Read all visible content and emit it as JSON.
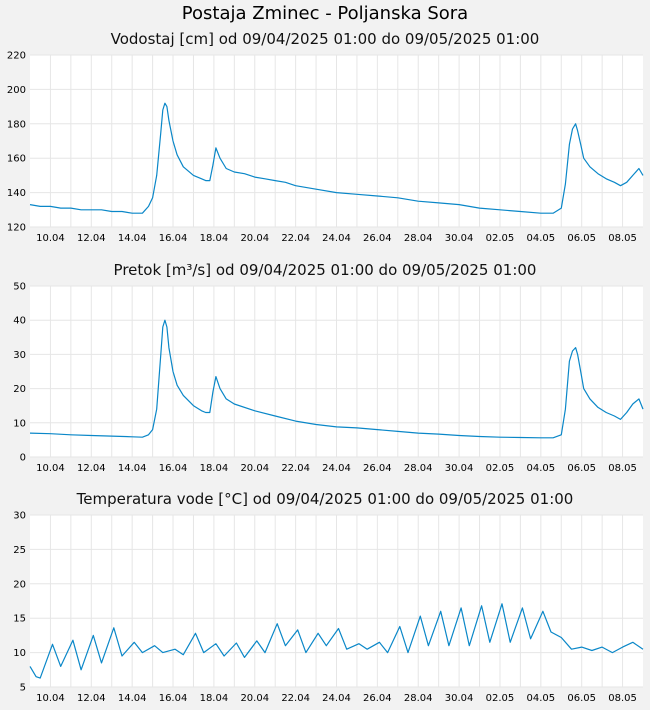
{
  "page": {
    "title": "Postaja Zminec - Poljanska Sora"
  },
  "colors": {
    "series": "#0a87c8",
    "background": "#f2f2f2",
    "plot_background": "#ffffff",
    "grid": "#e6e6e6"
  },
  "chart_data": [
    {
      "type": "line",
      "title": "Vodostaj [cm] od 09/04/2025 01:00 do 09/05/2025 01:00",
      "ylim": [
        120,
        220
      ],
      "yticks": [
        120,
        140,
        160,
        180,
        200,
        220
      ],
      "xlim": [
        0.0,
        30.0
      ],
      "xticks": [
        {
          "label": "10.04",
          "x": 1.0
        },
        {
          "label": "12.04",
          "x": 3.0
        },
        {
          "label": "14.04",
          "x": 5.0
        },
        {
          "label": "16.04",
          "x": 7.0
        },
        {
          "label": "18.04",
          "x": 9.0
        },
        {
          "label": "20.04",
          "x": 11.0
        },
        {
          "label": "22.04",
          "x": 13.0
        },
        {
          "label": "24.04",
          "x": 15.0
        },
        {
          "label": "26.04",
          "x": 17.0
        },
        {
          "label": "28.04",
          "x": 19.0
        },
        {
          "label": "30.04",
          "x": 21.0
        },
        {
          "label": "02.05",
          "x": 23.0
        },
        {
          "label": "04.05",
          "x": 25.0
        },
        {
          "label": "06.05",
          "x": 27.0
        },
        {
          "label": "08.05",
          "x": 29.0
        }
      ],
      "grid": true,
      "x_unit": "days since 09.04.2025 01:00",
      "x": [
        0,
        0.5,
        1.0,
        1.5,
        2.0,
        2.5,
        3.0,
        3.5,
        4.0,
        4.5,
        5.0,
        5.5,
        5.8,
        6.0,
        6.2,
        6.4,
        6.5,
        6.6,
        6.7,
        6.8,
        7.0,
        7.2,
        7.5,
        8.0,
        8.4,
        8.6,
        8.8,
        8.95,
        9.1,
        9.3,
        9.6,
        10.0,
        10.5,
        11.0,
        11.5,
        12.0,
        12.5,
        13.0,
        14.0,
        15.0,
        16.0,
        17.0,
        18.0,
        19.0,
        20.0,
        21.0,
        22.0,
        23.0,
        24.0,
        25.0,
        25.6,
        26.0,
        26.2,
        26.4,
        26.55,
        26.7,
        26.8,
        26.95,
        27.1,
        27.4,
        27.8,
        28.2,
        28.6,
        28.9,
        29.2,
        29.5,
        29.8,
        30.0
      ],
      "y": [
        133,
        132,
        132,
        131,
        131,
        130,
        130,
        130,
        129,
        129,
        128,
        128,
        132,
        137,
        150,
        175,
        188,
        192,
        190,
        182,
        170,
        162,
        155,
        150,
        148,
        147,
        147,
        156,
        166,
        160,
        154,
        152,
        151,
        149,
        148,
        147,
        146,
        144,
        142,
        140,
        139,
        138,
        137,
        135,
        134,
        133,
        131,
        130,
        129,
        128,
        128,
        131,
        145,
        168,
        177,
        180,
        176,
        168,
        160,
        155,
        151,
        148,
        146,
        144,
        146,
        150,
        154,
        150
      ]
    },
    {
      "type": "line",
      "title": "Pretok [m³/s] od 09/04/2025 01:00 do 09/05/2025 01:00",
      "ylim": [
        0,
        50
      ],
      "yticks": [
        0,
        10,
        20,
        30,
        40,
        50
      ],
      "xlim": [
        0.0,
        30.0
      ],
      "xticks": [
        {
          "label": "10.04",
          "x": 1.0
        },
        {
          "label": "12.04",
          "x": 3.0
        },
        {
          "label": "14.04",
          "x": 5.0
        },
        {
          "label": "16.04",
          "x": 7.0
        },
        {
          "label": "18.04",
          "x": 9.0
        },
        {
          "label": "20.04",
          "x": 11.0
        },
        {
          "label": "22.04",
          "x": 13.0
        },
        {
          "label": "24.04",
          "x": 15.0
        },
        {
          "label": "26.04",
          "x": 17.0
        },
        {
          "label": "28.04",
          "x": 19.0
        },
        {
          "label": "30.04",
          "x": 21.0
        },
        {
          "label": "02.05",
          "x": 23.0
        },
        {
          "label": "04.05",
          "x": 25.0
        },
        {
          "label": "06.05",
          "x": 27.0
        },
        {
          "label": "08.05",
          "x": 29.0
        }
      ],
      "grid": true,
      "x": [
        0,
        1.0,
        2.0,
        3.0,
        4.0,
        5.0,
        5.5,
        5.8,
        6.0,
        6.2,
        6.4,
        6.5,
        6.6,
        6.7,
        6.8,
        7.0,
        7.2,
        7.5,
        8.0,
        8.4,
        8.6,
        8.8,
        8.95,
        9.1,
        9.3,
        9.6,
        10.0,
        11.0,
        12.0,
        13.0,
        14.0,
        15.0,
        16.0,
        17.0,
        18.0,
        19.0,
        20.0,
        21.0,
        22.0,
        23.0,
        24.0,
        25.0,
        25.6,
        26.0,
        26.2,
        26.4,
        26.55,
        26.7,
        26.8,
        26.95,
        27.1,
        27.4,
        27.8,
        28.2,
        28.6,
        28.9,
        29.2,
        29.5,
        29.8,
        30.0
      ],
      "y": [
        7,
        6.8,
        6.5,
        6.3,
        6.1,
        5.9,
        5.8,
        6.5,
        8,
        14,
        30,
        38,
        40,
        38,
        32,
        25,
        21,
        18,
        15,
        13.5,
        13,
        13,
        19,
        23.5,
        20,
        17,
        15.5,
        13.5,
        12,
        10.5,
        9.5,
        8.8,
        8.5,
        8.0,
        7.5,
        7.0,
        6.7,
        6.3,
        6.0,
        5.8,
        5.7,
        5.6,
        5.6,
        6.5,
        14,
        28,
        31,
        32,
        30,
        25,
        20,
        17,
        14.5,
        13,
        12,
        11,
        13,
        15.5,
        17,
        14
      ]
    },
    {
      "type": "line",
      "title": "Temperatura vode [°C] od 09/04/2025 01:00 do 09/05/2025 01:00",
      "ylim": [
        5,
        30
      ],
      "yticks": [
        5,
        10,
        15,
        20,
        25,
        30
      ],
      "xlim": [
        0.0,
        30.0
      ],
      "xticks": [
        {
          "label": "10.04",
          "x": 1.0
        },
        {
          "label": "12.04",
          "x": 3.0
        },
        {
          "label": "14.04",
          "x": 5.0
        },
        {
          "label": "16.04",
          "x": 7.0
        },
        {
          "label": "18.04",
          "x": 9.0
        },
        {
          "label": "20.04",
          "x": 11.0
        },
        {
          "label": "22.04",
          "x": 13.0
        },
        {
          "label": "24.04",
          "x": 15.0
        },
        {
          "label": "26.04",
          "x": 17.0
        },
        {
          "label": "28.04",
          "x": 19.0
        },
        {
          "label": "30.04",
          "x": 21.0
        },
        {
          "label": "02.05",
          "x": 23.0
        },
        {
          "label": "04.05",
          "x": 25.0
        },
        {
          "label": "06.05",
          "x": 27.0
        },
        {
          "label": "08.05",
          "x": 29.0
        }
      ],
      "grid": true,
      "x": [
        0,
        0.3,
        0.5,
        1.1,
        1.5,
        2.1,
        2.5,
        3.1,
        3.5,
        4.1,
        4.5,
        5.1,
        5.5,
        6.1,
        6.5,
        7.1,
        7.5,
        8.1,
        8.5,
        9.1,
        9.5,
        10.1,
        10.5,
        11.1,
        11.5,
        12.1,
        12.5,
        13.1,
        13.5,
        14.1,
        14.5,
        15.1,
        15.5,
        16.1,
        16.5,
        17.1,
        17.5,
        18.1,
        18.5,
        19.1,
        19.5,
        20.1,
        20.5,
        21.1,
        21.5,
        22.1,
        22.5,
        23.1,
        23.5,
        24.1,
        24.5,
        25.1,
        25.5,
        26.0,
        26.5,
        27.0,
        27.5,
        28.0,
        28.5,
        29.0,
        29.5,
        30.0
      ],
      "y": [
        8,
        6.5,
        6.3,
        11.2,
        8,
        11.8,
        7.5,
        12.5,
        8.5,
        13.6,
        9.5,
        11.5,
        10,
        11,
        10,
        10.5,
        9.7,
        12.8,
        10,
        11.3,
        9.5,
        11.4,
        9.3,
        11.7,
        10,
        14.2,
        11,
        13.3,
        10,
        12.8,
        11,
        13.5,
        10.5,
        11.3,
        10.5,
        11.5,
        10,
        13.8,
        10,
        15.3,
        11,
        16.0,
        11,
        16.5,
        11,
        16.8,
        11.5,
        17.1,
        11.5,
        16.5,
        12,
        16.0,
        13,
        12.2,
        10.5,
        10.8,
        10.3,
        10.8,
        10.0,
        10.8,
        11.5,
        10.5
      ]
    }
  ]
}
